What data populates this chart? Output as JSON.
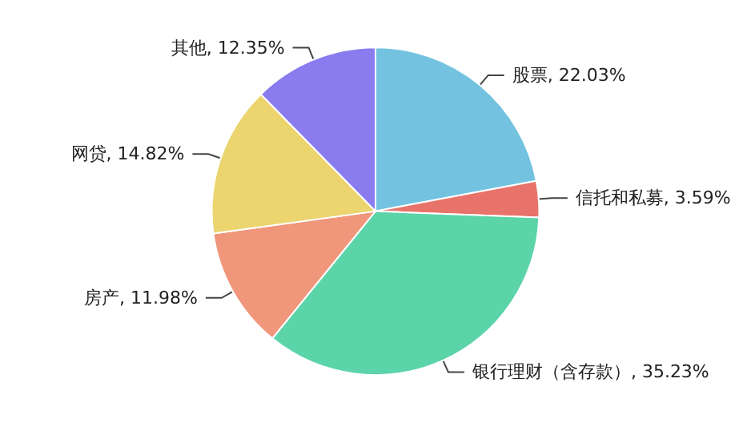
{
  "chart_data": {
    "type": "pie",
    "categories": [
      "股票",
      "信托和私募",
      "银行理财（含存款）",
      "房产",
      "网贷",
      "其他"
    ],
    "values": [
      22.03,
      3.59,
      35.23,
      11.98,
      14.82,
      12.35
    ],
    "value_labels": [
      "22.03%",
      "3.59%",
      "35.23%",
      "11.98%",
      "14.82%",
      "12.35%"
    ],
    "colors": [
      "#73c3e0",
      "#e8736b",
      "#5cd4a9",
      "#f0967b",
      "#ecd46f",
      "#8a7cef"
    ],
    "legend": false
  }
}
